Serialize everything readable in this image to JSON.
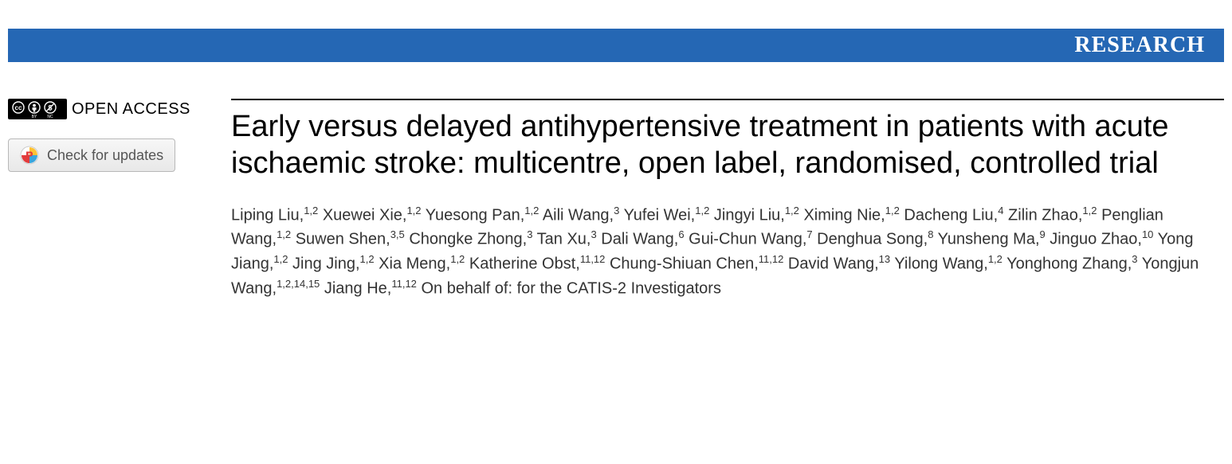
{
  "header": {
    "label": "RESEARCH"
  },
  "sidebar": {
    "open_access_label": "OPEN ACCESS",
    "check_updates_label": "Check for updates"
  },
  "article": {
    "title": "Early versus delayed antihypertensive treatment in patients with acute ischaemic stroke: multicentre, open label, randomised, controlled trial",
    "authors": [
      {
        "name": "Liping Liu",
        "aff": "1,2"
      },
      {
        "name": "Xuewei Xie",
        "aff": "1,2"
      },
      {
        "name": "Yuesong Pan",
        "aff": "1,2"
      },
      {
        "name": "Aili Wang",
        "aff": "3"
      },
      {
        "name": "Yufei Wei",
        "aff": "1,2"
      },
      {
        "name": "Jingyi Liu",
        "aff": "1,2"
      },
      {
        "name": "Ximing Nie",
        "aff": "1,2"
      },
      {
        "name": "Dacheng Liu",
        "aff": "4"
      },
      {
        "name": "Zilin Zhao",
        "aff": "1,2"
      },
      {
        "name": "Penglian Wang",
        "aff": "1,2"
      },
      {
        "name": "Suwen Shen",
        "aff": "3,5"
      },
      {
        "name": "Chongke Zhong",
        "aff": "3"
      },
      {
        "name": "Tan Xu",
        "aff": "3"
      },
      {
        "name": "Dali Wang",
        "aff": "6"
      },
      {
        "name": "Gui-Chun Wang",
        "aff": "7"
      },
      {
        "name": "Denghua Song",
        "aff": "8"
      },
      {
        "name": "Yunsheng Ma",
        "aff": "9"
      },
      {
        "name": "Jinguo Zhao",
        "aff": "10"
      },
      {
        "name": "Yong Jiang",
        "aff": "1,2"
      },
      {
        "name": "Jing Jing",
        "aff": "1,2"
      },
      {
        "name": "Xia Meng",
        "aff": "1,2"
      },
      {
        "name": "Katherine Obst",
        "aff": "11,12"
      },
      {
        "name": "Chung-Shiuan Chen",
        "aff": "11,12"
      },
      {
        "name": "David Wang",
        "aff": "13"
      },
      {
        "name": "Yilong Wang",
        "aff": "1,2"
      },
      {
        "name": "Yonghong Zhang",
        "aff": "3"
      },
      {
        "name": "Yongjun Wang",
        "aff": "1,2,14,15"
      },
      {
        "name": "Jiang He",
        "aff": "11,12"
      }
    ],
    "on_behalf": "On behalf of: for the CATIS-2 Investigators"
  },
  "colors": {
    "header_bg": "#2567b4",
    "header_text": "#ffffff",
    "title_text": "#000000",
    "author_text": "#333333",
    "rule": "#000000"
  }
}
